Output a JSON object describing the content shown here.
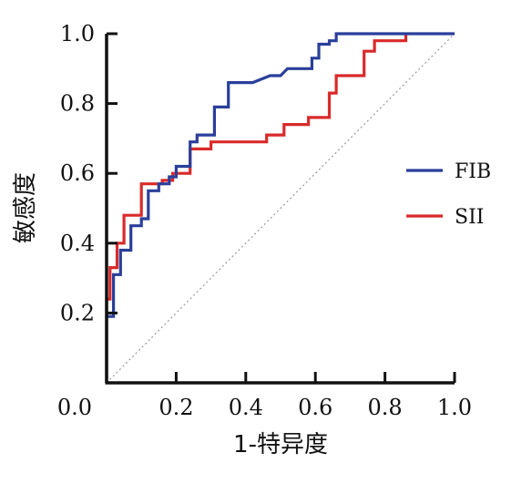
{
  "chart_data": {
    "type": "line",
    "title": "",
    "xlabel": "1-特异度",
    "ylabel": "敏感度",
    "xlim": [
      0,
      1
    ],
    "ylim": [
      0,
      1
    ],
    "grid": false,
    "legend_position": "right",
    "x_ticks": [
      "0.0",
      "0.2",
      "0.4",
      "0.6",
      "0.8",
      "1.0"
    ],
    "y_ticks": [
      "0.2",
      "0.4",
      "0.6",
      "0.8",
      "1.0"
    ],
    "reference_line": {
      "x": [
        0,
        1
      ],
      "y": [
        0,
        1
      ],
      "style": "dotted",
      "color": "#999999"
    },
    "series": [
      {
        "name": "FIB",
        "color": "#2a3f9a",
        "x": [
          0,
          0,
          0.02,
          0.02,
          0.04,
          0.04,
          0.07,
          0.07,
          0.1,
          0.1,
          0.12,
          0.12,
          0.15,
          0.15,
          0.18,
          0.18,
          0.2,
          0.2,
          0.24,
          0.24,
          0.26,
          0.26,
          0.31,
          0.31,
          0.35,
          0.35,
          0.42,
          0.47,
          0.5,
          0.52,
          0.52,
          0.59,
          0.59,
          0.61,
          0.61,
          0.64,
          0.64,
          0.66,
          0.66,
          0.68,
          1.0
        ],
        "y": [
          0,
          0.19,
          0.19,
          0.31,
          0.31,
          0.38,
          0.38,
          0.45,
          0.45,
          0.47,
          0.47,
          0.55,
          0.55,
          0.57,
          0.57,
          0.59,
          0.59,
          0.62,
          0.62,
          0.69,
          0.69,
          0.71,
          0.71,
          0.79,
          0.79,
          0.86,
          0.86,
          0.88,
          0.88,
          0.9,
          0.9,
          0.9,
          0.93,
          0.93,
          0.97,
          0.97,
          0.98,
          0.98,
          1.0,
          1.0,
          1.0
        ]
      },
      {
        "name": "SII",
        "color": "#d92a2a",
        "x": [
          0,
          0,
          0.01,
          0.01,
          0.03,
          0.03,
          0.05,
          0.05,
          0.1,
          0.1,
          0.13,
          0.13,
          0.16,
          0.16,
          0.19,
          0.19,
          0.24,
          0.24,
          0.3,
          0.3,
          0.37,
          0.46,
          0.46,
          0.51,
          0.51,
          0.58,
          0.58,
          0.64,
          0.64,
          0.66,
          0.66,
          0.74,
          0.74,
          0.77,
          0.77,
          0.86,
          0.86
        ],
        "y": [
          0.19,
          0.24,
          0.24,
          0.33,
          0.33,
          0.4,
          0.4,
          0.48,
          0.48,
          0.57,
          0.57,
          0.57,
          0.57,
          0.58,
          0.58,
          0.6,
          0.6,
          0.67,
          0.67,
          0.69,
          0.69,
          0.69,
          0.71,
          0.71,
          0.74,
          0.74,
          0.76,
          0.76,
          0.83,
          0.83,
          0.88,
          0.88,
          0.95,
          0.95,
          0.98,
          0.98,
          1.0
        ]
      }
    ]
  }
}
